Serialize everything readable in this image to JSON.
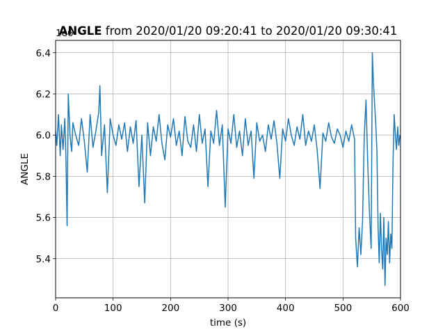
{
  "chart_data": {
    "type": "line",
    "title_bold": "ANGLE",
    "title_rest": " from 2020/01/20 09:20:41 to 2020/01/20 09:30:41",
    "xlabel": "time (s)",
    "ylabel": "ANGLE",
    "y_offset_text": "1e6",
    "xlim": [
      0,
      600
    ],
    "ylim": [
      5.21,
      6.46
    ],
    "x_ticks": [
      0,
      100,
      200,
      300,
      400,
      500,
      600
    ],
    "x_tick_labels": [
      "0",
      "100",
      "200",
      "300",
      "400",
      "500",
      "600"
    ],
    "y_ticks": [
      5.4,
      5.6,
      5.8,
      6.0,
      6.2,
      6.4
    ],
    "y_tick_labels": [
      "5.4",
      "5.6",
      "5.8",
      "6.0",
      "6.2",
      "6.4"
    ],
    "grid": true,
    "line_color": "#1f77b4",
    "series": [
      {
        "values_note_unit": "x1e6",
        "x": [
          0,
          2,
          5,
          8,
          10,
          13,
          16,
          18,
          20,
          22,
          25,
          28,
          30,
          35,
          40,
          45,
          50,
          55,
          60,
          65,
          70,
          75,
          77,
          80,
          85,
          90,
          95,
          100,
          105,
          110,
          115,
          120,
          125,
          130,
          135,
          140,
          145,
          150,
          155,
          160,
          165,
          170,
          175,
          180,
          185,
          190,
          195,
          200,
          205,
          210,
          215,
          220,
          225,
          230,
          235,
          240,
          245,
          250,
          255,
          260,
          265,
          270,
          275,
          280,
          285,
          290,
          295,
          300,
          305,
          310,
          315,
          320,
          325,
          330,
          335,
          340,
          345,
          350,
          355,
          360,
          365,
          370,
          375,
          380,
          385,
          390,
          395,
          400,
          405,
          410,
          415,
          420,
          425,
          430,
          435,
          440,
          445,
          450,
          455,
          460,
          465,
          470,
          475,
          480,
          485,
          490,
          495,
          500,
          505,
          510,
          515,
          520,
          522,
          525,
          528,
          531,
          534,
          537,
          540,
          543,
          546,
          549,
          551,
          553,
          555,
          557,
          559,
          561,
          563,
          565,
          567,
          569,
          571,
          573,
          575,
          577,
          579,
          581,
          583,
          585,
          587,
          589,
          591,
          593,
          595,
          597,
          599
        ],
        "y": [
          6.02,
          5.95,
          6.1,
          5.9,
          6.05,
          5.93,
          6.08,
          5.88,
          5.56,
          6.2,
          6.0,
          5.92,
          6.06,
          6.0,
          5.95,
          6.08,
          5.97,
          5.82,
          6.1,
          5.94,
          6.02,
          6.11,
          6.24,
          5.9,
          6.05,
          5.72,
          6.08,
          6.0,
          5.95,
          6.05,
          5.98,
          6.06,
          5.92,
          6.04,
          5.96,
          6.07,
          5.75,
          6.0,
          5.67,
          6.06,
          5.9,
          6.04,
          5.97,
          6.1,
          5.96,
          5.88,
          6.05,
          5.99,
          6.08,
          5.95,
          6.02,
          5.9,
          6.09,
          5.97,
          5.94,
          6.05,
          5.92,
          6.1,
          5.96,
          6.03,
          5.75,
          6.02,
          5.96,
          6.12,
          5.95,
          6.05,
          5.65,
          6.03,
          5.96,
          6.1,
          5.94,
          6.02,
          5.9,
          6.08,
          5.95,
          6.02,
          5.79,
          6.06,
          5.97,
          6.0,
          5.92,
          6.05,
          5.98,
          6.07,
          5.96,
          5.79,
          6.03,
          5.97,
          6.08,
          6.0,
          5.95,
          6.04,
          5.98,
          6.1,
          5.95,
          6.02,
          5.97,
          6.05,
          5.93,
          5.74,
          6.01,
          5.97,
          6.06,
          5.99,
          5.96,
          6.03,
          6.0,
          5.94,
          6.02,
          5.97,
          6.05,
          5.98,
          5.5,
          5.36,
          5.55,
          5.42,
          5.58,
          6.0,
          6.17,
          5.86,
          5.62,
          5.45,
          6.4,
          6.25,
          6.15,
          6.05,
          5.92,
          5.55,
          5.38,
          5.62,
          5.45,
          5.35,
          5.6,
          5.27,
          5.5,
          5.42,
          5.58,
          5.38,
          5.52,
          5.45,
          5.88,
          6.1,
          6.0,
          5.93,
          6.04,
          5.95,
          6.0
        ]
      }
    ]
  }
}
